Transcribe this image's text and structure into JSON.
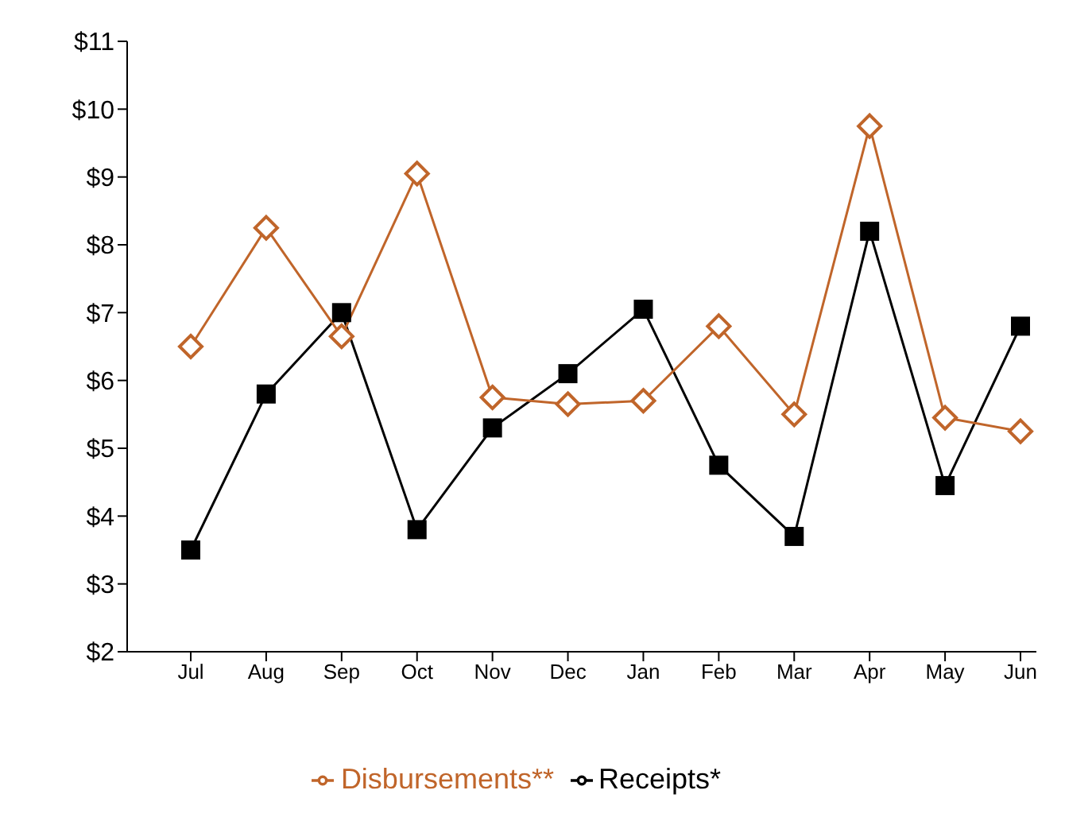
{
  "chart_data": {
    "type": "line",
    "categories": [
      "Jul",
      "Aug",
      "Sep",
      "Oct",
      "Nov",
      "Dec",
      "Jan",
      "Feb",
      "Mar",
      "Apr",
      "May",
      "Jun"
    ],
    "series": [
      {
        "name": "Receipts*",
        "color": "#000000",
        "marker": "square",
        "values": [
          3.5,
          5.8,
          7.0,
          3.8,
          5.3,
          6.1,
          7.05,
          4.75,
          3.7,
          8.2,
          4.45,
          6.8
        ]
      },
      {
        "name": "Disbursements**",
        "color": "#c0652a",
        "marker": "diamond",
        "values": [
          6.5,
          8.25,
          6.65,
          9.05,
          5.75,
          5.65,
          5.7,
          6.8,
          5.5,
          9.75,
          5.45,
          5.25
        ]
      }
    ],
    "ylim": [
      2,
      11
    ],
    "yticks": [
      {
        "value": 2,
        "label": "$2"
      },
      {
        "value": 3,
        "label": "$3"
      },
      {
        "value": 4,
        "label": "$4"
      },
      {
        "value": 5,
        "label": "$5"
      },
      {
        "value": 6,
        "label": "$6"
      },
      {
        "value": 7,
        "label": "$7"
      },
      {
        "value": 8,
        "label": "$8"
      },
      {
        "value": 9,
        "label": "$9"
      },
      {
        "value": 10,
        "label": "$10"
      },
      {
        "value": 11,
        "label": "$11"
      }
    ],
    "grid": false,
    "legend": "bottom"
  }
}
